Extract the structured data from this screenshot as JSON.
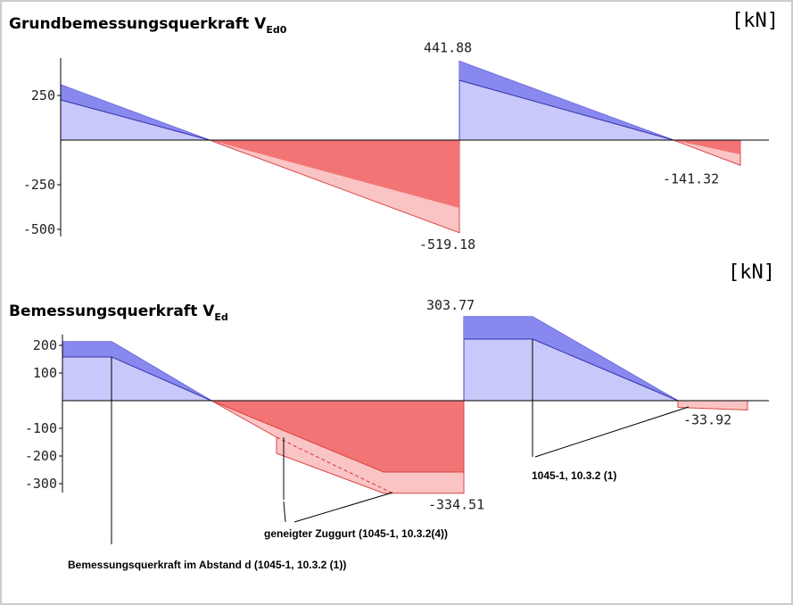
{
  "panels": [
    {
      "title": "Grundbemessungsquerkraft V",
      "title_sub": "Ed0",
      "unit": "[kN]",
      "yticks": [
        250,
        -250,
        -500
      ],
      "peaks": [
        441.88,
        -519.18,
        -141.32
      ]
    },
    {
      "title": "Bemessungsquerkraft V",
      "title_sub": "Ed",
      "unit": "[kN]",
      "yticks": [
        200,
        100,
        -100,
        -200,
        -300
      ],
      "peaks": [
        303.77,
        -334.51,
        -33.92
      ],
      "notes": [
        "geneigter Zuggurt (1045-1, 10.3.2(4))",
        "1045-1, 10.3.2 (1)",
        "Bemessungsquerkraft im Abstand d (1045-1, 10.3.2 (1))"
      ]
    }
  ]
}
